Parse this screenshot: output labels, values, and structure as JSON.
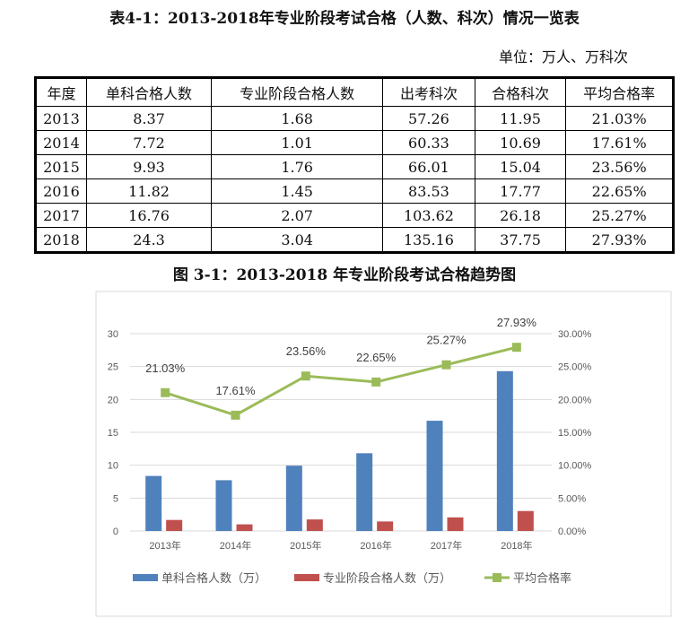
{
  "table": {
    "title": "表4-1：2013-2018年专业阶段考试合格（人数、科次）情况一览表",
    "unit": "单位：万人、万科次",
    "headers": [
      "年度",
      "单科合格人数",
      "专业阶段合格人数",
      "出考科次",
      "合格科次",
      "平均合格率"
    ],
    "rows": [
      [
        "2013",
        "8.37",
        "1.68",
        "57.26",
        "11.95",
        "21.03%"
      ],
      [
        "2014",
        "7.72",
        "1.01",
        "60.33",
        "10.69",
        "17.61%"
      ],
      [
        "2015",
        "9.93",
        "1.76",
        "66.01",
        "15.04",
        "23.56%"
      ],
      [
        "2016",
        "11.82",
        "1.45",
        "83.53",
        "17.77",
        "22.65%"
      ],
      [
        "2017",
        "16.76",
        "2.07",
        "103.62",
        "26.18",
        "25.27%"
      ],
      [
        "2018",
        "24.3",
        "3.04",
        "135.16",
        "37.75",
        "27.93%"
      ]
    ]
  },
  "chart_data": {
    "type": "bar",
    "title": "图 3-1：2013-2018 年专业阶段考试合格趋势图",
    "categories": [
      "2013年",
      "2014年",
      "2015年",
      "2016年",
      "2017年",
      "2018年"
    ],
    "ylim": [
      0,
      30
    ],
    "yticks": [
      "0",
      "5",
      "10",
      "15",
      "20",
      "25",
      "30"
    ],
    "y2lim": [
      0,
      30
    ],
    "y2ticks": [
      "0.00%",
      "5.00%",
      "10.00%",
      "15.00%",
      "20.00%",
      "25.00%",
      "30.00%"
    ],
    "grid": true,
    "legend": "bottom",
    "series": [
      {
        "name": "单科合格人数（万）",
        "type": "bar",
        "color": "#4f81bd",
        "values": [
          8.37,
          7.72,
          9.93,
          11.82,
          16.76,
          24.3
        ]
      },
      {
        "name": "专业阶段合格人数（万）",
        "type": "bar",
        "color": "#c0504d",
        "values": [
          1.68,
          1.01,
          1.76,
          1.45,
          2.07,
          3.04
        ]
      },
      {
        "name": "平均合格率",
        "type": "line",
        "axis": "right",
        "color": "#9bbb59",
        "values": [
          21.03,
          17.61,
          23.56,
          22.65,
          25.27,
          27.93
        ],
        "labels": [
          "21.03%",
          "17.61%",
          "23.56%",
          "22.65%",
          "25.27%",
          "27.93%"
        ]
      }
    ]
  }
}
